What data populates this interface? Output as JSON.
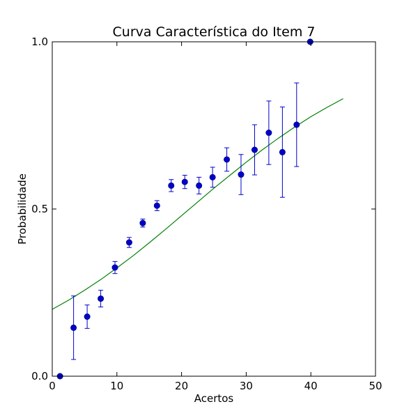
{
  "chart_data": {
    "type": "scatter",
    "title": "Curva Característica do Item 7",
    "xlabel": "Acertos",
    "ylabel": "Probabilidade",
    "xlim": [
      0,
      50
    ],
    "ylim": [
      0.0,
      1.0
    ],
    "xticks": [
      "0",
      "10",
      "20",
      "30",
      "40",
      "50"
    ],
    "yticks": [
      "0.0",
      "0.5",
      "1.0"
    ],
    "grid": false,
    "colors": {
      "points": "#0000cc",
      "errorbars": "#0000cc",
      "curve": "#008000"
    },
    "series": [
      {
        "type": "errorbar",
        "x": [
          1.2,
          3.3,
          5.4,
          7.5,
          9.7,
          11.9,
          14.0,
          16.2,
          18.4,
          20.5,
          22.7,
          24.8,
          27.0,
          29.2,
          31.3,
          33.5,
          35.6,
          37.8,
          39.9
        ],
        "y": [
          0.0,
          0.145,
          0.178,
          0.232,
          0.325,
          0.4,
          0.458,
          0.51,
          0.57,
          0.581,
          0.57,
          0.595,
          0.648,
          0.603,
          0.677,
          0.728,
          0.67,
          0.752,
          1.0
        ],
        "yerr": [
          0.0,
          0.095,
          0.035,
          0.025,
          0.018,
          0.015,
          0.012,
          0.015,
          0.018,
          0.02,
          0.025,
          0.03,
          0.035,
          0.06,
          0.075,
          0.095,
          0.135,
          0.125,
          0.0
        ]
      },
      {
        "type": "line",
        "x": [
          0,
          2.5,
          5,
          7.5,
          10,
          12.5,
          15,
          17.5,
          20,
          22.5,
          25,
          27.5,
          30,
          32.5,
          35,
          37.5,
          40,
          42.5,
          45
        ],
        "y": [
          0.2,
          0.227,
          0.257,
          0.289,
          0.324,
          0.36,
          0.399,
          0.439,
          0.48,
          0.521,
          0.562,
          0.601,
          0.64,
          0.677,
          0.712,
          0.745,
          0.776,
          0.804,
          0.83
        ]
      }
    ]
  }
}
